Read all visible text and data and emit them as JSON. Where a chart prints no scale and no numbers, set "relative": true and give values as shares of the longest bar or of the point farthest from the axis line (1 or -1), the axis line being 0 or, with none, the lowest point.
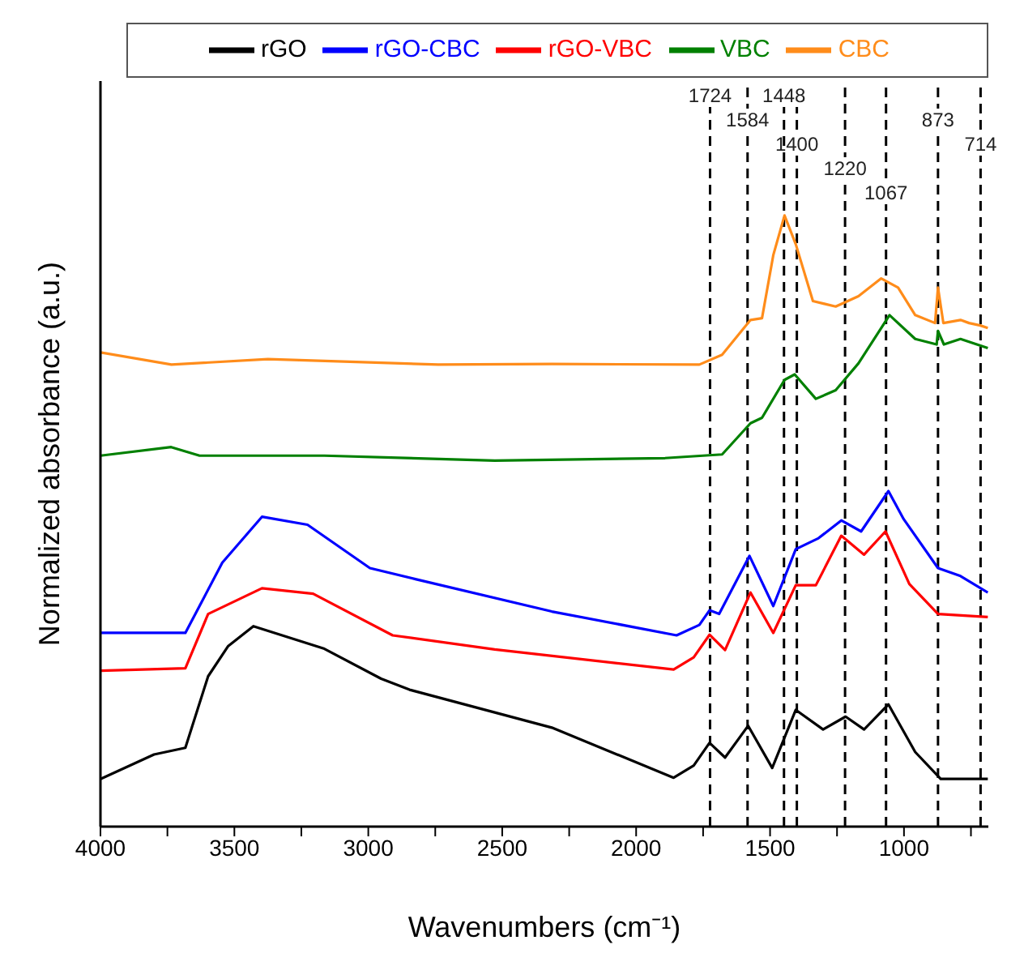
{
  "chart_data": {
    "type": "line",
    "relative": true,
    "xlabel": "Wavenumbers (cm⁻¹)",
    "ylabel": "Normalized absorbance (a.u.)",
    "xlim": [
      4000,
      685
    ],
    "xticks": [
      4000,
      {
        "value": 3750,
        "label": null
      },
      3500,
      {
        "value": 3250,
        "label": null
      },
      3000,
      {
        "value": 2750,
        "label": null
      },
      2500,
      {
        "value": 2250,
        "label": null
      },
      2000,
      {
        "value": 1750,
        "label": null
      },
      1500,
      {
        "value": 1250,
        "label": null
      },
      1000,
      {
        "value": 750,
        "label": null
      }
    ],
    "tick_labels": "x",
    "grid": false,
    "legend": "top",
    "marker": "none",
    "line_style": "solid",
    "series": [
      {
        "name": "rGO",
        "color": "#000000",
        "x": [
          4000,
          3800,
          3683,
          3598,
          3524,
          3429,
          3164,
          2952,
          2846,
          2315,
          1860,
          1785,
          1726,
          1668,
          1582,
          1492,
          1404,
          1302,
          1218,
          1149,
          1058,
          958,
          863,
          687
        ],
        "values": [
          0.078,
          0.118,
          0.129,
          0.246,
          0.295,
          0.328,
          0.291,
          0.242,
          0.224,
          0.162,
          0.08,
          0.1,
          0.137,
          0.113,
          0.165,
          0.096,
          0.191,
          0.159,
          0.18,
          0.159,
          0.2,
          0.122,
          0.078,
          0.078
        ]
      },
      {
        "name": "rGO-CBC",
        "color": "#0000ff",
        "x": [
          4000,
          3683,
          3630,
          3545,
          3397,
          3227,
          2994,
          2824,
          2315,
          1849,
          1764,
          1726,
          1690,
          1577,
          1488,
          1404,
          1319,
          1234,
          1160,
          1058,
          1001,
          873,
          789,
          687
        ],
        "values": [
          0.317,
          0.317,
          0.361,
          0.432,
          0.507,
          0.494,
          0.423,
          0.405,
          0.352,
          0.313,
          0.33,
          0.354,
          0.348,
          0.443,
          0.361,
          0.454,
          0.472,
          0.501,
          0.483,
          0.549,
          0.503,
          0.423,
          0.41,
          0.383
        ]
      },
      {
        "name": "rGO-VBC",
        "color": "#ff0000",
        "x": [
          4000,
          3683,
          3598,
          3397,
          3206,
          2909,
          2528,
          1860,
          1785,
          1726,
          1668,
          1573,
          1488,
          1404,
          1329,
          1234,
          1149,
          1069,
          980,
          873,
          687
        ],
        "values": [
          0.255,
          0.259,
          0.348,
          0.39,
          0.381,
          0.313,
          0.29,
          0.257,
          0.277,
          0.314,
          0.289,
          0.383,
          0.317,
          0.395,
          0.395,
          0.476,
          0.445,
          0.483,
          0.397,
          0.348,
          0.343
        ]
      },
      {
        "name": "VBC",
        "color": "#008000",
        "x": [
          4000,
          3736,
          3630,
          3164,
          2528,
          1892,
          1679,
          1573,
          1530,
          1446,
          1408,
          1329,
          1255,
          1170,
          1054,
          958,
          878,
          873,
          851,
          789,
          687
        ],
        "values": [
          0.607,
          0.621,
          0.607,
          0.607,
          0.599,
          0.603,
          0.609,
          0.66,
          0.669,
          0.731,
          0.74,
          0.7,
          0.714,
          0.758,
          0.837,
          0.798,
          0.789,
          0.811,
          0.789,
          0.798,
          0.783
        ]
      },
      {
        "name": "CBC",
        "color": "#ff8c1a",
        "x": [
          4000,
          3735,
          3375,
          2739,
          2315,
          1764,
          1679,
          1573,
          1530,
          1488,
          1446,
          1404,
          1340,
          1255,
          1170,
          1085,
          1022,
          958,
          884,
          873,
          853,
          789,
          757,
          715,
          687
        ],
        "values": [
          0.776,
          0.756,
          0.765,
          0.756,
          0.757,
          0.756,
          0.772,
          0.829,
          0.832,
          0.935,
          1.0,
          0.953,
          0.86,
          0.851,
          0.868,
          0.897,
          0.882,
          0.837,
          0.824,
          0.882,
          0.824,
          0.829,
          0.824,
          0.82,
          0.816
        ]
      }
    ],
    "ref_lines": [
      {
        "axis": "x",
        "value": 1724,
        "label": "1724",
        "color": "#000000",
        "line_style": "dashed"
      },
      {
        "axis": "x",
        "value": 1584,
        "label": "1584",
        "color": "#000000",
        "line_style": "dashed"
      },
      {
        "axis": "x",
        "value": 1400,
        "label": "1400",
        "color": "#000000",
        "line_style": "dashed"
      },
      {
        "axis": "x",
        "value": 1220,
        "label": "1220",
        "color": "#000000",
        "line_style": "dashed"
      },
      {
        "axis": "x",
        "value": 1067,
        "label": "1067",
        "color": "#000000",
        "line_style": "dashed"
      },
      {
        "axis": "x",
        "value": 1448,
        "label": "1448",
        "color": "#000000",
        "line_style": "dashed"
      },
      {
        "axis": "x",
        "value": 873,
        "label": "873",
        "color": "#000000",
        "line_style": "dashed"
      },
      {
        "axis": "x",
        "value": 714,
        "label": "714",
        "color": "#000000",
        "line_style": "dashed"
      }
    ]
  }
}
